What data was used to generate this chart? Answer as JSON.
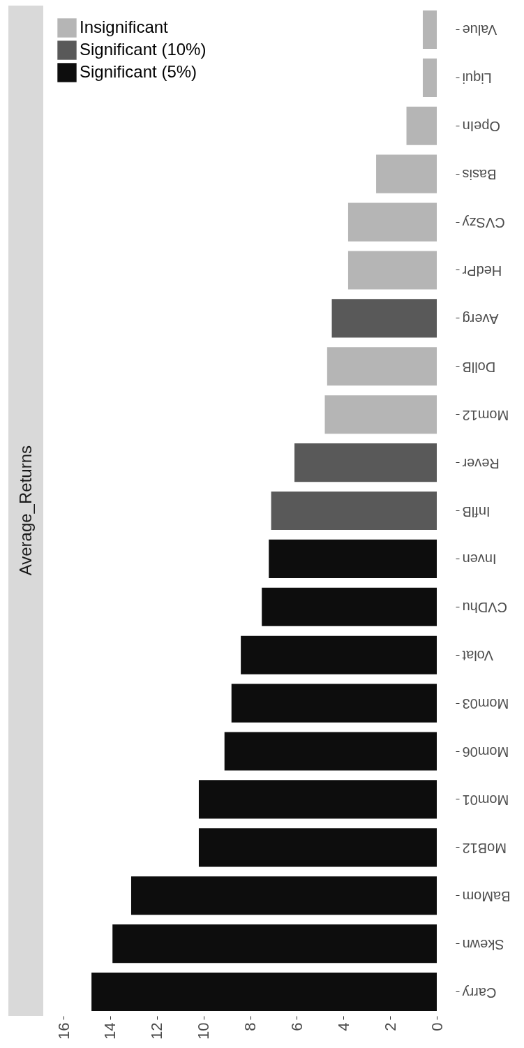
{
  "chart_data": {
    "type": "bar",
    "title": "Average_Returns",
    "orientation": "horizontal",
    "categories": [
      "Value",
      "Liqui",
      "OpeIn",
      "Basis",
      "CVSzy",
      "HedPr",
      "Averg",
      "DollB",
      "Mom12",
      "Rever",
      "InflB",
      "Inven",
      "CVDhu",
      "Volat",
      "Mom03",
      "Mom06",
      "Mom01",
      "MoB12",
      "BaMom",
      "Skewn",
      "Carry"
    ],
    "series": [
      {
        "name": "Insignificant",
        "color": "#b5b5b5",
        "values": [
          0.6,
          0.6,
          1.3,
          2.6,
          3.8,
          3.8,
          null,
          4.7,
          4.8,
          null,
          null,
          null,
          null,
          null,
          null,
          null,
          null,
          null,
          null,
          null,
          null
        ]
      },
      {
        "name": "Significant (10%)",
        "color": "#595959",
        "values": [
          null,
          null,
          null,
          null,
          null,
          null,
          4.5,
          null,
          null,
          6.1,
          7.1,
          null,
          null,
          null,
          null,
          null,
          null,
          null,
          null,
          null,
          null
        ]
      },
      {
        "name": "Significant (5%)",
        "color": "#0d0d0d",
        "values": [
          null,
          null,
          null,
          null,
          null,
          null,
          null,
          null,
          null,
          null,
          null,
          7.2,
          7.5,
          8.4,
          8.8,
          9.1,
          10.2,
          10.2,
          13.1,
          13.9,
          14.8
        ]
      }
    ],
    "xlim": [
      16,
      0
    ],
    "xticks": [
      0,
      2,
      4,
      6,
      8,
      10,
      12,
      14,
      16
    ],
    "grid": false,
    "legend": "top left"
  }
}
